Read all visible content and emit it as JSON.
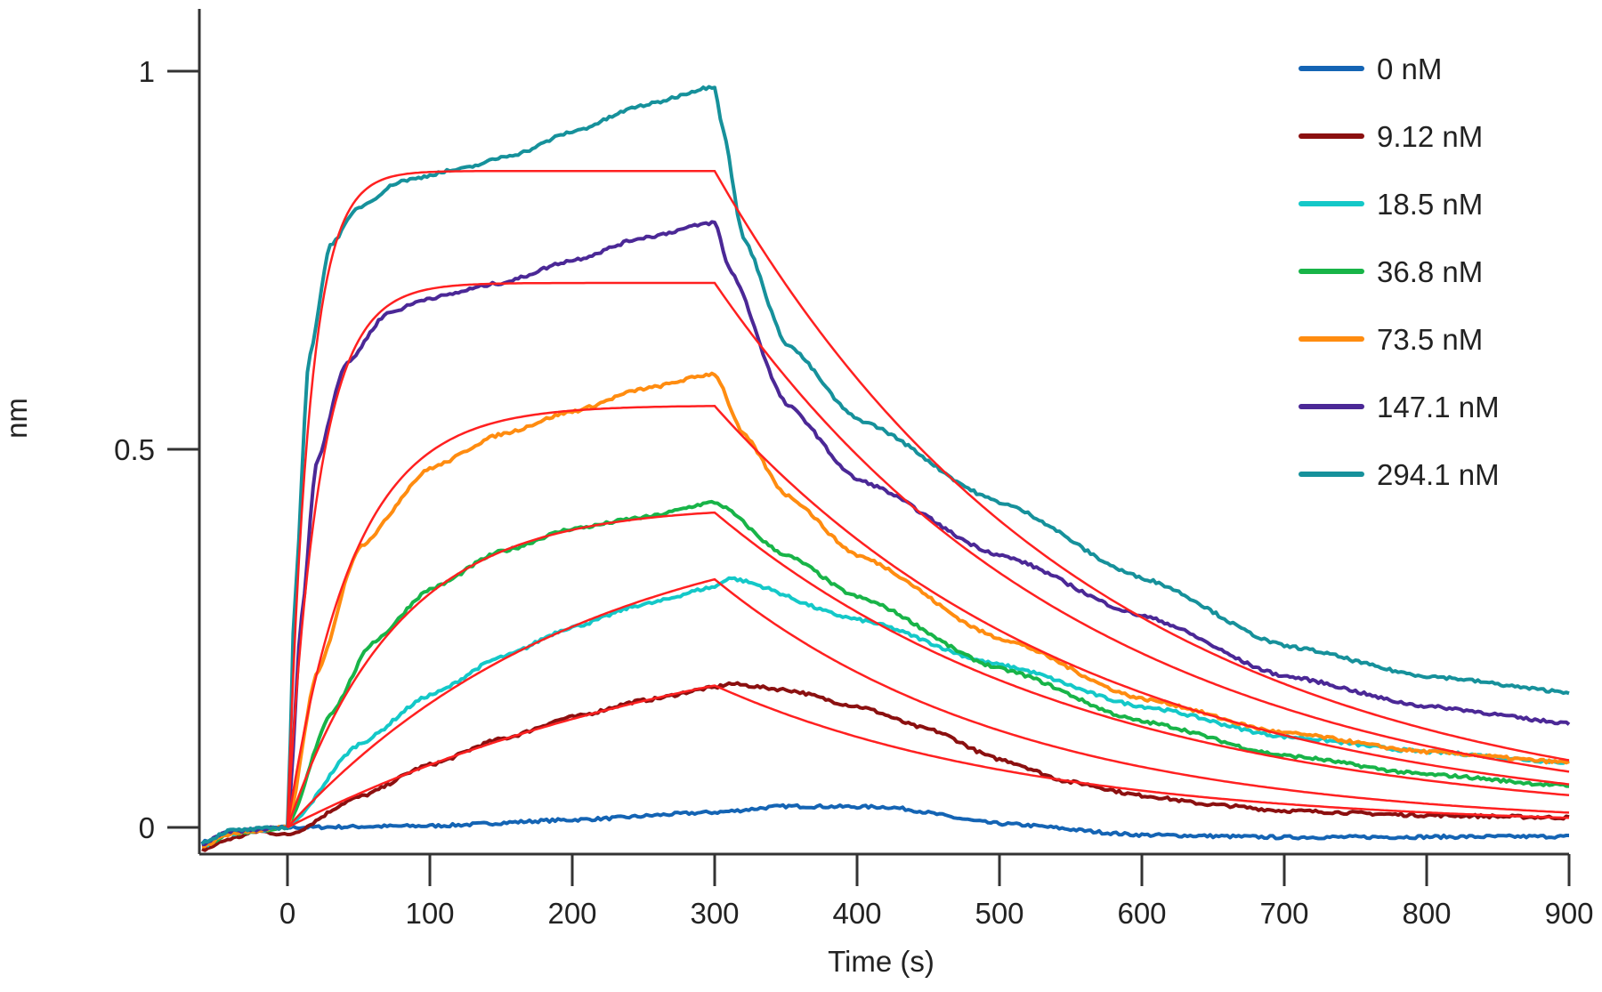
{
  "chart_data": {
    "type": "line",
    "title": "",
    "xlabel": "Time (s)",
    "ylabel": "nm",
    "xlim": [
      -62,
      900
    ],
    "ylim": [
      -0.035,
      1.08
    ],
    "xticks": [
      0,
      100,
      200,
      300,
      400,
      500,
      600,
      700,
      800,
      900
    ],
    "xtick_labels": [
      "0",
      "100",
      "200",
      "300",
      "400",
      "500",
      "600",
      "700",
      "800",
      "900"
    ],
    "yticks": [
      0,
      0.5,
      1
    ],
    "ytick_labels": [
      "0",
      "0.5",
      "1"
    ],
    "grid": false,
    "legend_position": "top-right",
    "association_end": 300,
    "fit_color": "#ff2020",
    "series": [
      {
        "name": "0 nM",
        "color": "#1464b4",
        "points": [
          [
            -60,
            -0.02
          ],
          [
            -40,
            -0.005
          ],
          [
            0,
            0
          ],
          [
            100,
            0.002
          ],
          [
            200,
            0.01
          ],
          [
            300,
            0.02
          ],
          [
            350,
            0.028
          ],
          [
            420,
            0.027
          ],
          [
            500,
            0.005
          ],
          [
            600,
            -0.01
          ],
          [
            700,
            -0.013
          ],
          [
            900,
            -0.012
          ]
        ]
      },
      {
        "name": "9.12 nM",
        "color": "#8b1010",
        "points": [
          [
            -60,
            -0.03
          ],
          [
            -40,
            -0.015
          ],
          [
            -20,
            -0.005
          ],
          [
            0,
            -0.01
          ],
          [
            50,
            0.04
          ],
          [
            100,
            0.083
          ],
          [
            150,
            0.117
          ],
          [
            200,
            0.146
          ],
          [
            250,
            0.168
          ],
          [
            300,
            0.185
          ],
          [
            310,
            0.19
          ],
          [
            350,
            0.182
          ],
          [
            400,
            0.16
          ],
          [
            450,
            0.13
          ],
          [
            500,
            0.09
          ],
          [
            550,
            0.06
          ],
          [
            600,
            0.042
          ],
          [
            650,
            0.03
          ],
          [
            700,
            0.022
          ],
          [
            800,
            0.016
          ],
          [
            900,
            0.013
          ]
        ],
        "fit": {
          "Req": 0.31,
          "kobs": 0.0031,
          "kd": 0.0045
        }
      },
      {
        "name": "18.5 nM",
        "color": "#14c8c8",
        "points": [
          [
            -60,
            -0.025
          ],
          [
            -40,
            -0.008
          ],
          [
            0,
            0
          ],
          [
            50,
            0.11
          ],
          [
            100,
            0.175
          ],
          [
            150,
            0.225
          ],
          [
            200,
            0.265
          ],
          [
            250,
            0.295
          ],
          [
            300,
            0.318
          ],
          [
            310,
            0.33
          ],
          [
            400,
            0.275
          ],
          [
            500,
            0.215
          ],
          [
            600,
            0.16
          ],
          [
            700,
            0.12
          ],
          [
            800,
            0.1
          ],
          [
            900,
            0.086
          ]
        ],
        "fit": {
          "Req": 0.43,
          "kobs": 0.0048,
          "kd": 0.0047
        }
      },
      {
        "name": "36.8 nM",
        "color": "#18b448",
        "points": [
          [
            -60,
            -0.025
          ],
          [
            -40,
            -0.008
          ],
          [
            0,
            0
          ],
          [
            30,
            0.15
          ],
          [
            60,
            0.245
          ],
          [
            100,
            0.315
          ],
          [
            150,
            0.365
          ],
          [
            200,
            0.395
          ],
          [
            250,
            0.41
          ],
          [
            300,
            0.43
          ],
          [
            350,
            0.36
          ],
          [
            400,
            0.305
          ],
          [
            500,
            0.21
          ],
          [
            600,
            0.14
          ],
          [
            700,
            0.095
          ],
          [
            800,
            0.07
          ],
          [
            900,
            0.055
          ]
        ],
        "fit": {
          "Req": 0.425,
          "kobs": 0.013,
          "kd": 0.0038
        }
      },
      {
        "name": "73.5 nM",
        "color": "#ff8c10",
        "points": [
          [
            -60,
            -0.025
          ],
          [
            -40,
            -0.008
          ],
          [
            0,
            0
          ],
          [
            20,
            0.2
          ],
          [
            50,
            0.37
          ],
          [
            100,
            0.475
          ],
          [
            150,
            0.52
          ],
          [
            200,
            0.55
          ],
          [
            250,
            0.58
          ],
          [
            300,
            0.6
          ],
          [
            320,
            0.52
          ],
          [
            350,
            0.44
          ],
          [
            400,
            0.36
          ],
          [
            500,
            0.25
          ],
          [
            600,
            0.17
          ],
          [
            700,
            0.125
          ],
          [
            800,
            0.1
          ],
          [
            900,
            0.086
          ]
        ],
        "fit": {
          "Req": 0.558,
          "kobs": 0.022,
          "kd": 0.0038
        }
      },
      {
        "name": "147.1 nM",
        "color": "#4b2896",
        "points": [
          [
            -60,
            -0.022
          ],
          [
            -40,
            -0.005
          ],
          [
            0,
            0
          ],
          [
            10,
            0.28
          ],
          [
            20,
            0.48
          ],
          [
            40,
            0.61
          ],
          [
            70,
            0.68
          ],
          [
            100,
            0.7
          ],
          [
            150,
            0.72
          ],
          [
            200,
            0.75
          ],
          [
            250,
            0.78
          ],
          [
            300,
            0.8
          ],
          [
            310,
            0.74
          ],
          [
            350,
            0.56
          ],
          [
            400,
            0.46
          ],
          [
            500,
            0.36
          ],
          [
            600,
            0.28
          ],
          [
            700,
            0.2
          ],
          [
            800,
            0.16
          ],
          [
            900,
            0.138
          ]
        ],
        "fit": {
          "Req": 0.72,
          "kobs": 0.045,
          "kd": 0.0038
        }
      },
      {
        "name": "294.1 nM",
        "color": "#16919b",
        "points": [
          [
            -60,
            -0.02
          ],
          [
            -40,
            -0.004
          ],
          [
            0,
            0
          ],
          [
            5,
            0.3
          ],
          [
            15,
            0.62
          ],
          [
            30,
            0.77
          ],
          [
            50,
            0.82
          ],
          [
            80,
            0.855
          ],
          [
            120,
            0.87
          ],
          [
            160,
            0.89
          ],
          [
            200,
            0.92
          ],
          [
            250,
            0.955
          ],
          [
            300,
            0.98
          ],
          [
            305,
            0.93
          ],
          [
            320,
            0.78
          ],
          [
            350,
            0.64
          ],
          [
            400,
            0.54
          ],
          [
            500,
            0.43
          ],
          [
            600,
            0.33
          ],
          [
            700,
            0.24
          ],
          [
            800,
            0.2
          ],
          [
            900,
            0.179
          ]
        ],
        "fit": {
          "Req": 0.868,
          "kobs": 0.065,
          "kd": 0.0038
        }
      }
    ]
  }
}
